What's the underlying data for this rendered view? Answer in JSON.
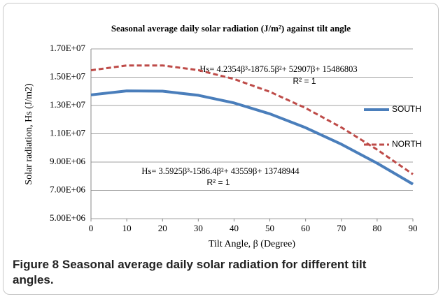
{
  "chart_data": {
    "type": "line",
    "title": "Seasonal average daily solar radiation (J/m²) against tilt angle",
    "x_label": "Tilt Angle, β (Degree)",
    "y_label": "Solar radiation, Hs (J/m2)",
    "x": [
      0,
      10,
      20,
      30,
      40,
      50,
      60,
      70,
      80,
      90
    ],
    "series": [
      {
        "name": "SOUTH",
        "color": "#4a7ebb",
        "dash": false,
        "values": [
          13750000,
          14030000,
          14010000,
          13720000,
          13180000,
          12410000,
          11430000,
          10260000,
          8920000,
          7440000
        ]
      },
      {
        "name": "NORTH",
        "color": "#be4b48",
        "dash": true,
        "values": [
          15490000,
          15830000,
          15830000,
          15500000,
          14870000,
          13970000,
          12820000,
          11450000,
          9880000,
          8140000
        ]
      }
    ],
    "xlim": [
      0,
      90
    ],
    "xticks": [
      0,
      10,
      20,
      30,
      40,
      50,
      60,
      70,
      80,
      90
    ],
    "ylim": [
      5000000,
      17000000
    ],
    "yticks": [
      {
        "value": 5000000,
        "label": "5.00E+06"
      },
      {
        "value": 7000000,
        "label": "7.00E+06"
      },
      {
        "value": 9000000,
        "label": "9.00E+06"
      },
      {
        "value": 11000000,
        "label": "1.10E+07"
      },
      {
        "value": 13000000,
        "label": "1.30E+07"
      },
      {
        "value": 15000000,
        "label": "1.50E+07"
      },
      {
        "value": 17000000,
        "label": "1.70E+07"
      }
    ],
    "grid": true,
    "legend": "right",
    "annotations": [
      {
        "text": "Hs= 4.2354β³-1876.5β²+ 52907β+ 15486803",
        "r2": "R² = 1"
      },
      {
        "text": "Hs= 3.5925β³-1586.4β²+ 43559β+ 13748944",
        "r2": "R² = 1"
      }
    ]
  },
  "caption": {
    "label": "Figure 8",
    "text": "Seasonal average daily solar radiation for different tilt angles."
  }
}
